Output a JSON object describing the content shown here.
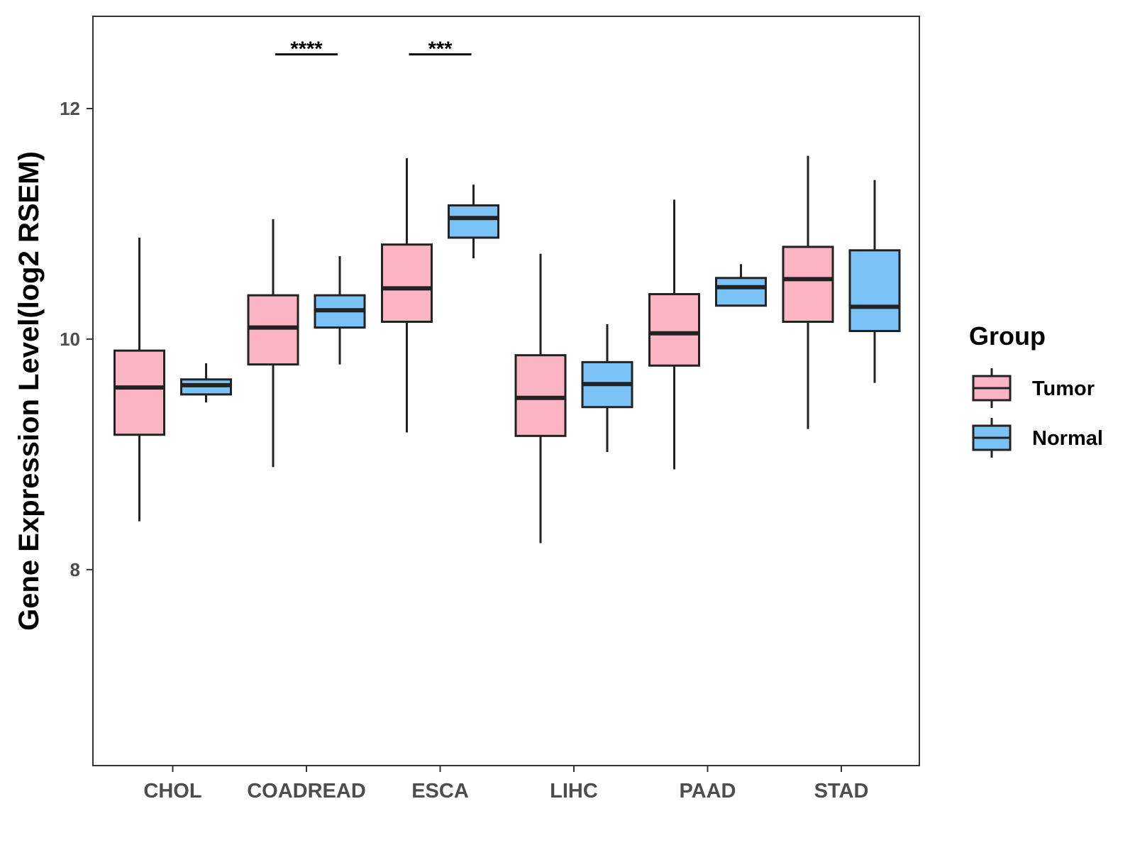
{
  "chart_data": {
    "type": "boxplot",
    "title": "",
    "xlabel": "",
    "ylabel": "Gene Expression Level(log2 RSEM)",
    "ylim": [
      6.3,
      12.8
    ],
    "yticks": [
      8,
      10,
      12
    ],
    "grid": false,
    "legend_position": "right",
    "categories": [
      "CHOL",
      "COADREAD",
      "ESCA",
      "LIHC",
      "PAAD",
      "STAD"
    ],
    "legend": {
      "title": "Group",
      "entries": [
        "Tumor",
        "Normal"
      ]
    },
    "series": [
      {
        "name": "Tumor",
        "color": "#FBB4C4",
        "boxes": [
          {
            "min": 8.42,
            "q1": 9.17,
            "median": 9.58,
            "q3": 9.9,
            "max": 10.88
          },
          {
            "min": 8.89,
            "q1": 9.78,
            "median": 10.1,
            "q3": 10.38,
            "max": 11.04
          },
          {
            "min": 9.19,
            "q1": 10.15,
            "median": 10.44,
            "q3": 10.82,
            "max": 11.57
          },
          {
            "min": 8.23,
            "q1": 9.16,
            "median": 9.49,
            "q3": 9.86,
            "max": 10.74
          },
          {
            "min": 8.87,
            "q1": 9.77,
            "median": 10.05,
            "q3": 10.39,
            "max": 11.21
          },
          {
            "min": 9.22,
            "q1": 10.15,
            "median": 10.52,
            "q3": 10.8,
            "max": 11.59
          }
        ]
      },
      {
        "name": "Normal",
        "color": "#7BC2F7",
        "boxes": [
          {
            "min": 9.45,
            "q1": 9.52,
            "median": 9.6,
            "q3": 9.65,
            "max": 9.79
          },
          {
            "min": 9.78,
            "q1": 10.1,
            "median": 10.25,
            "q3": 10.38,
            "max": 10.72
          },
          {
            "min": 10.7,
            "q1": 10.88,
            "median": 11.05,
            "q3": 11.16,
            "max": 11.34
          },
          {
            "min": 9.02,
            "q1": 9.41,
            "median": 9.61,
            "q3": 9.8,
            "max": 10.13
          },
          {
            "min": 10.29,
            "q1": 10.29,
            "median": 10.45,
            "q3": 10.53,
            "max": 10.65
          },
          {
            "min": 9.62,
            "q1": 10.07,
            "median": 10.28,
            "q3": 10.77,
            "max": 11.38
          }
        ]
      }
    ],
    "annotations": [
      {
        "category": "COADREAD",
        "label": "****",
        "y": 12.47
      },
      {
        "category": "ESCA",
        "label": "***",
        "y": 12.47
      }
    ]
  }
}
